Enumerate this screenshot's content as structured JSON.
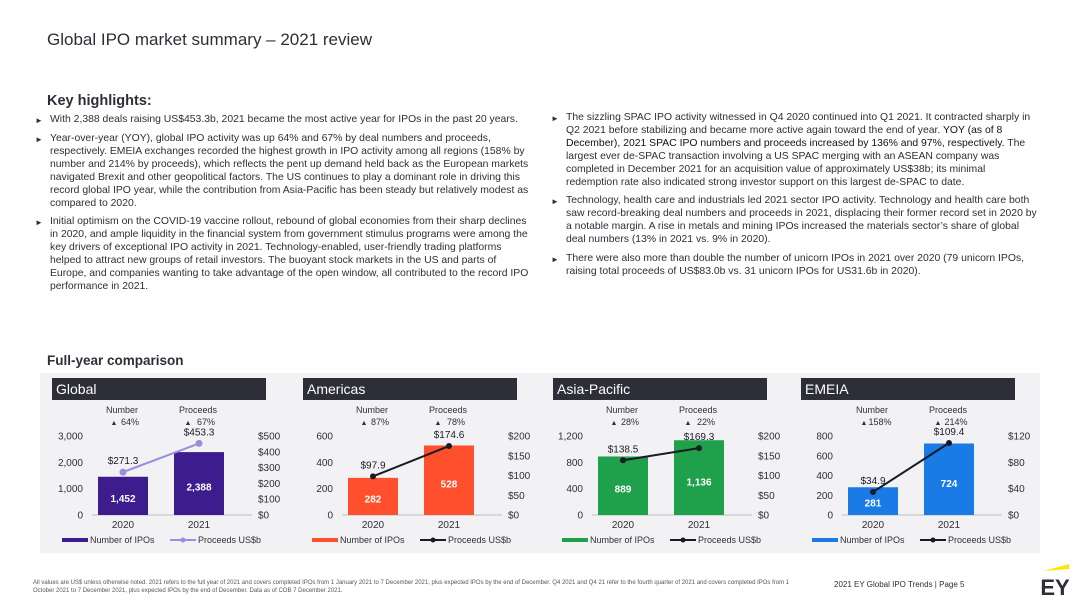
{
  "page": {
    "title": "Global IPO market summary – 2021 review"
  },
  "highlights": {
    "title": "Key highlights:",
    "left": [
      {
        "text": "With 2,388 deals raising US$453.3b, 2021 became the most active year for IPOs in the past 20 years."
      },
      {
        "text": "Year-over-year (YOY), global IPO activity was up 64% and 67% by deal numbers and proceeds, respectively. EMEIA exchanges recorded the highest growth in IPO activity among all regions (158% by number and 214% by proceeds), which reflects the pent up demand held back as the European markets navigated Brexit and other geopolitical factors. The US continues to play a dominant role in driving this record global IPO year, while the contribution from Asia-Pacific has been steady but relatively modest as compared to 2020."
      },
      {
        "text": "Initial optimism on the COVID-19 vaccine rollout, rebound of global economies from their sharp declines in 2020, and ample liquidity in the financial system from government stimulus programs were among the key drivers of exceptional IPO activity in 2021. Technology-enabled, user-friendly trading platforms helped to attract new groups of retail investors. The buoyant stock markets in the US and parts of Europe, and companies wanting to take advantage of the open window, all contributed to the record IPO performance in 2021."
      }
    ],
    "right": [
      {
        "pre": "The sizzling SPAC IPO activity witnessed in Q4 2020 continued into Q1 2021. It contracted sharply in Q2 2021 before stabilizing and became more active again toward the end of year. ",
        "strong": "YOY (as of 8 December), 2021 SPAC IPO numbers and proceeds increased by 136% and 97%, respectively.",
        "post": " The largest ever de-SPAC transaction involving a US SPAC merging with an ASEAN company was completed in December 2021 for an acquisition value of approximately US$38b; its minimal redemption rate also indicated strong investor support on this largest de-SPAC to date."
      },
      {
        "pre": "Technology, health care and industrials led 2021 sector IPO activity. Technology and health care both saw record-breaking deal numbers and proceeds in 2021, displacing their former record set in 2020 by a notable margin. A rise in metals and mining IPOs increased the materials sector’s share of global deal numbers (13% in 2021 vs. 9% in 2020).",
        "strong": "",
        "post": ""
      },
      {
        "pre": "There were also more than double the number of unicorn IPOs in 2021 over 2020 (79 unicorn IPOs, raising total proceeds of US$83.0b vs. 31 unicorn IPOs for US31.6b in 2020).",
        "strong": "",
        "post": ""
      }
    ]
  },
  "comparison": {
    "title": "Full-year comparison"
  },
  "chart_data": [
    {
      "type": "bar",
      "region": "Global",
      "categories": [
        "2020",
        "2021"
      ],
      "number_label": "Number",
      "proceeds_label": "Proceeds",
      "number_change": "64%",
      "proceeds_change": "67%",
      "series": [
        {
          "name": "Number of IPOs",
          "type": "bar",
          "values": [
            1452,
            2388
          ],
          "labels": [
            "1,452",
            "2,388"
          ]
        },
        {
          "name": "Proceeds US$b",
          "type": "line",
          "values": [
            271.3,
            453.3
          ],
          "labels": [
            "$271.3",
            "$453.3"
          ]
        }
      ],
      "left_axis": {
        "min": 0,
        "max": 3000,
        "ticks": [
          0,
          1000,
          2000,
          3000
        ],
        "tick_labels": [
          "0",
          "1,000",
          "2,000",
          "3,000"
        ]
      },
      "right_axis": {
        "min": 0,
        "max": 500,
        "ticks": [
          0,
          100,
          200,
          300,
          400,
          500
        ],
        "tick_labels": [
          "$0",
          "$100",
          "$200",
          "$300",
          "$400",
          "$500"
        ]
      },
      "bar_color": "#3d1c8e",
      "line_color": "#9b8edb",
      "line_marker": "circle",
      "legend_position": "bottom"
    },
    {
      "type": "bar",
      "region": "Americas",
      "categories": [
        "2020",
        "2021"
      ],
      "number_label": "Number",
      "proceeds_label": "Proceeds",
      "number_change": "87%",
      "proceeds_change": "78%",
      "series": [
        {
          "name": "Number of IPOs",
          "type": "bar",
          "values": [
            282,
            528
          ],
          "labels": [
            "282",
            "528"
          ]
        },
        {
          "name": "Proceeds US$b",
          "type": "line",
          "values": [
            97.9,
            174.6
          ],
          "labels": [
            "$97.9",
            "$174.6"
          ]
        }
      ],
      "left_axis": {
        "min": 0,
        "max": 600,
        "ticks": [
          0,
          200,
          400,
          600
        ],
        "tick_labels": [
          "0",
          "200",
          "400",
          "600"
        ]
      },
      "right_axis": {
        "min": 0,
        "max": 200,
        "ticks": [
          0,
          50,
          100,
          150,
          200
        ],
        "tick_labels": [
          "$0",
          "$50",
          "$100",
          "$150",
          "$200"
        ]
      },
      "bar_color": "#ff4f2c",
      "line_color": "#1a1a24",
      "line_marker": "dot",
      "legend_position": "bottom"
    },
    {
      "type": "bar",
      "region": "Asia-Pacific",
      "categories": [
        "2020",
        "2021"
      ],
      "number_label": "Number",
      "proceeds_label": "Proceeds",
      "number_change": "28%",
      "proceeds_change": "22%",
      "series": [
        {
          "name": "Number of IPOs",
          "type": "bar",
          "values": [
            889,
            1136
          ],
          "labels": [
            "889",
            "1,136"
          ]
        },
        {
          "name": "Proceeds US$b",
          "type": "line",
          "values": [
            138.5,
            169.3
          ],
          "labels": [
            "$138.5",
            "$169.3"
          ]
        }
      ],
      "left_axis": {
        "min": 0,
        "max": 1200,
        "ticks": [
          0,
          400,
          800,
          1200
        ],
        "tick_labels": [
          "0",
          "400",
          "800",
          "1,200"
        ]
      },
      "right_axis": {
        "min": 0,
        "max": 200,
        "ticks": [
          0,
          50,
          100,
          150,
          200
        ],
        "tick_labels": [
          "$0",
          "$50",
          "$100",
          "$150",
          "$200"
        ]
      },
      "bar_color": "#1fa04a",
      "line_color": "#1a1a24",
      "line_marker": "dot",
      "legend_position": "bottom"
    },
    {
      "type": "bar",
      "region": "EMEIA",
      "categories": [
        "2020",
        "2021"
      ],
      "number_label": "Number",
      "proceeds_label": "Proceeds",
      "number_change": "158%",
      "proceeds_change": "214%",
      "series": [
        {
          "name": "Number of IPOs",
          "type": "bar",
          "values": [
            281,
            724
          ],
          "labels": [
            "281",
            "724"
          ]
        },
        {
          "name": "Proceeds US$b",
          "type": "line",
          "values": [
            34.9,
            109.4
          ],
          "labels": [
            "$34.9",
            "$109.4"
          ]
        }
      ],
      "left_axis": {
        "min": 0,
        "max": 800,
        "ticks": [
          0,
          200,
          400,
          600,
          800
        ],
        "tick_labels": [
          "0",
          "200",
          "400",
          "600",
          "800"
        ]
      },
      "right_axis": {
        "min": 0,
        "max": 120,
        "ticks": [
          0,
          40,
          80,
          120
        ],
        "tick_labels": [
          "$0",
          "$40",
          "$80",
          "$120"
        ]
      },
      "bar_color": "#1a7ae6",
      "line_color": "#1a1a24",
      "line_marker": "dot",
      "legend_position": "bottom"
    }
  ],
  "footer": {
    "note": "All values are US$ unless otherwise noted. 2021 refers to the full year of 2021 and covers completed IPOs from 1 January 2021 to 7 December 2021, plus expected IPOs by the end of December. Q4 2021 and Q4 21 refer to the fourth quarter of 2021 and covers completed IPOs from 1 October 2021 to 7 December 2021, plus expected IPOs by the end of December. Data as of COB 7 December 2021.",
    "page_label": "2021 EY Global IPO Trends | Page 5",
    "logo_text": "EY",
    "logo_color": "#ffe600"
  },
  "colors": {
    "dark": "#2e2e38",
    "panel": "#f2f2f4"
  }
}
